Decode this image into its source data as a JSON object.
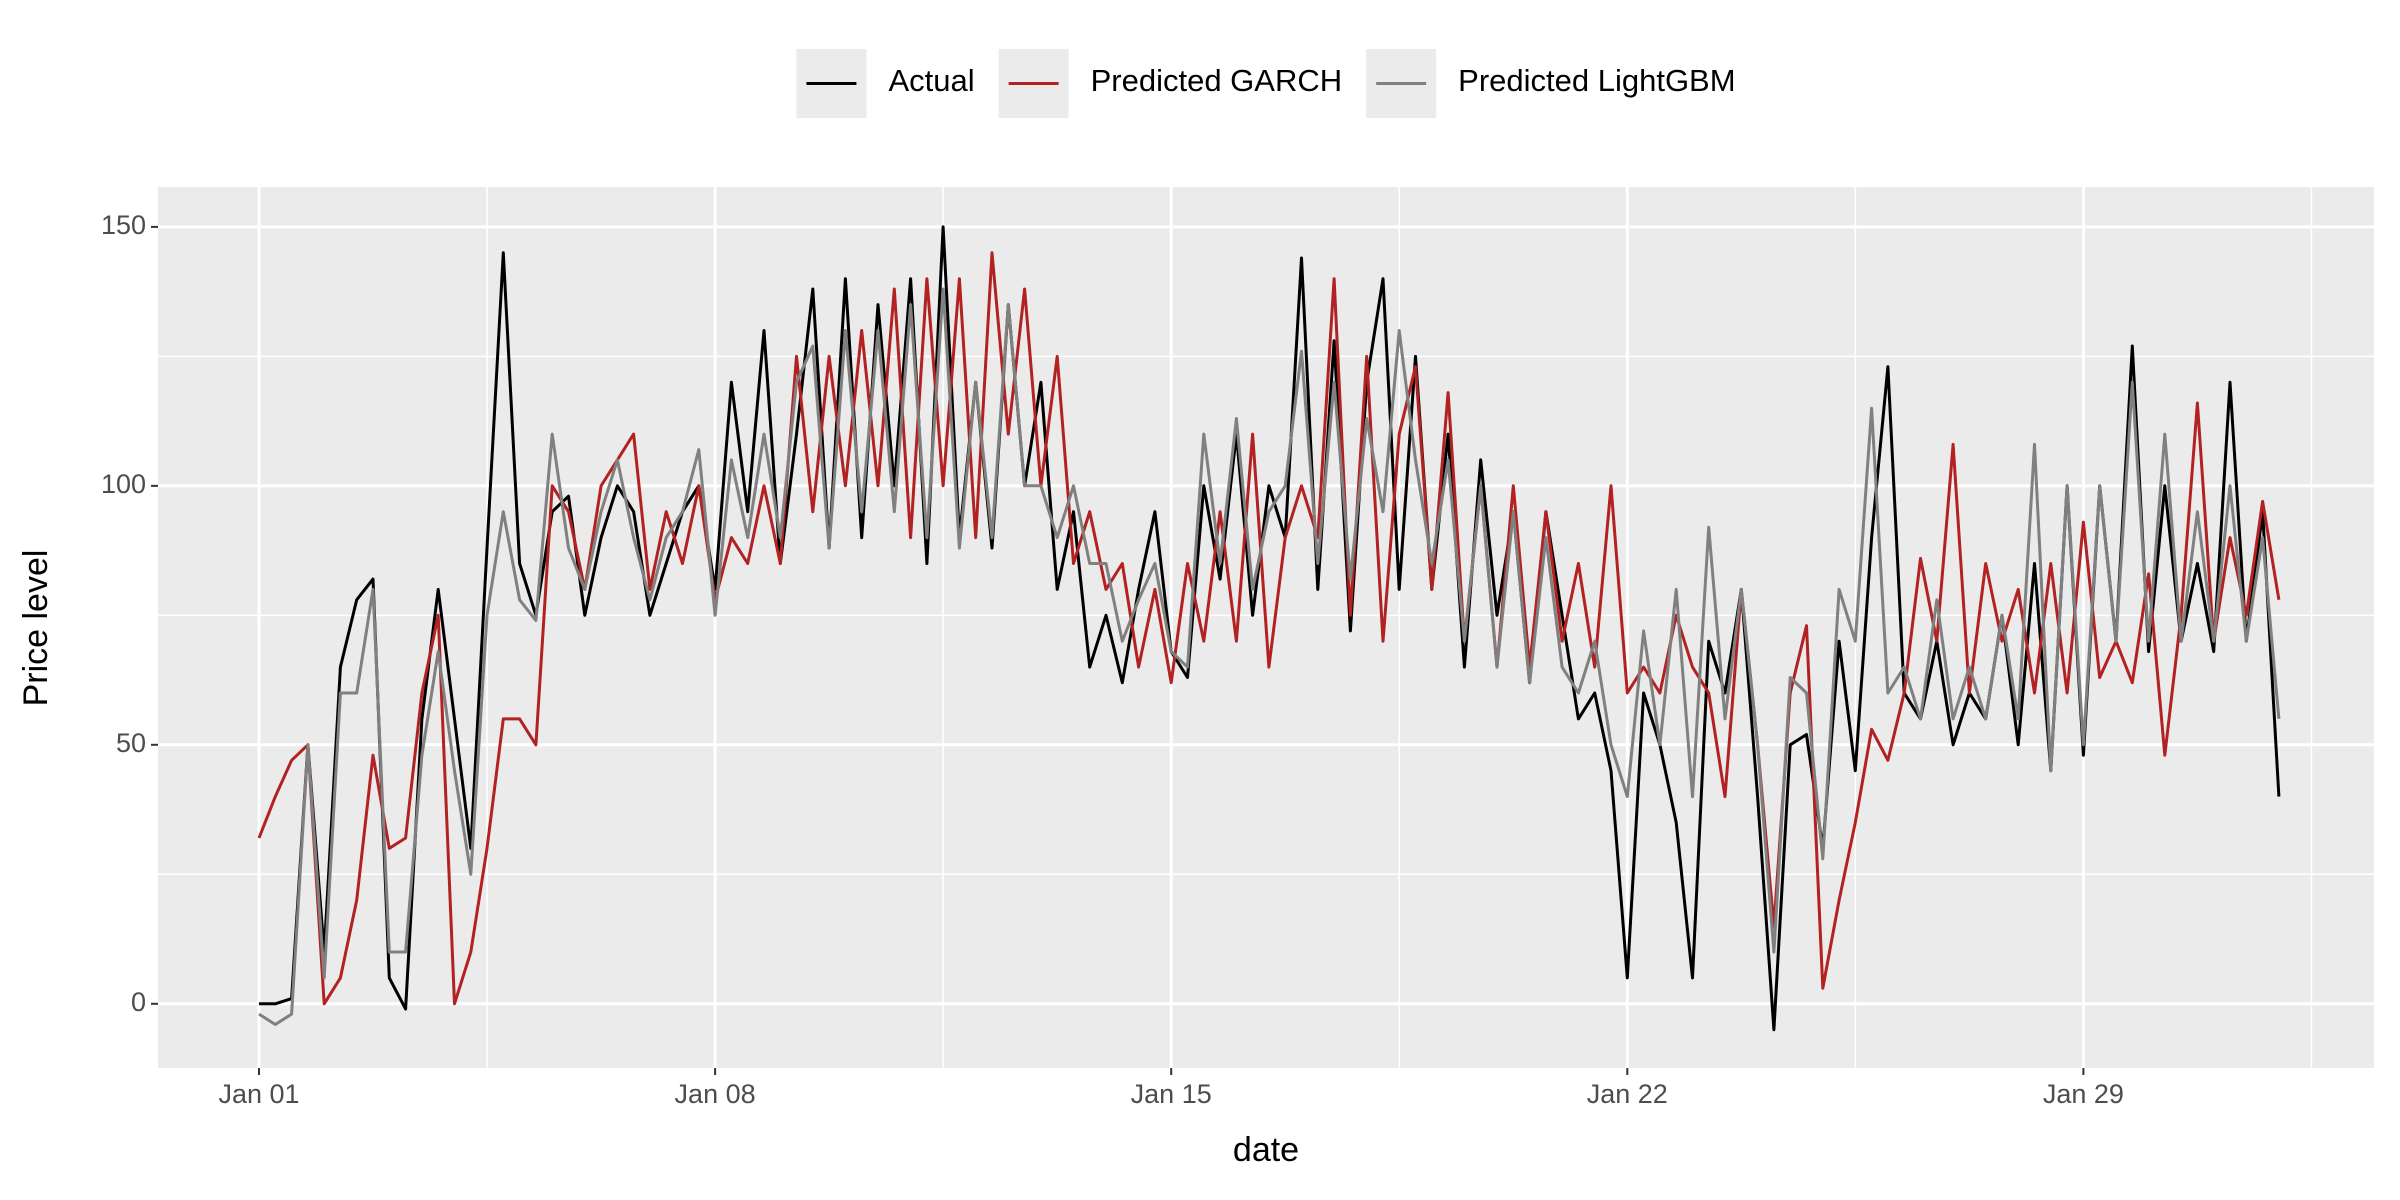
{
  "chart_data": {
    "type": "line",
    "x_label": "date",
    "y_label": "Price level",
    "x": [
      1,
      1.25,
      1.5,
      1.75,
      2,
      2.25,
      2.5,
      2.75,
      3,
      3.25,
      3.5,
      3.75,
      4,
      4.25,
      4.5,
      4.75,
      5,
      5.25,
      5.5,
      5.75,
      6,
      6.25,
      6.5,
      6.75,
      7,
      7.25,
      7.5,
      7.75,
      8,
      8.25,
      8.5,
      8.75,
      9,
      9.25,
      9.5,
      9.75,
      10,
      10.25,
      10.5,
      10.75,
      11,
      11.25,
      11.5,
      11.75,
      12,
      12.25,
      12.5,
      12.75,
      13,
      13.25,
      13.5,
      13.75,
      14,
      14.25,
      14.5,
      14.75,
      15,
      15.25,
      15.5,
      15.75,
      16,
      16.25,
      16.5,
      16.75,
      17,
      17.25,
      17.5,
      17.75,
      18,
      18.25,
      18.5,
      18.75,
      19,
      19.25,
      19.5,
      19.75,
      20,
      20.25,
      20.5,
      20.75,
      21,
      21.25,
      21.5,
      21.75,
      22,
      22.25,
      22.5,
      22.75,
      23,
      23.25,
      23.5,
      23.75,
      24,
      24.25,
      24.5,
      24.75,
      25,
      25.25,
      25.5,
      25.75,
      26,
      26.25,
      26.5,
      26.75,
      27,
      27.25,
      27.5,
      27.75,
      28,
      28.25,
      28.5,
      28.75,
      29,
      29.25,
      29.5,
      29.75,
      30,
      30.25,
      30.5,
      30.75,
      31,
      31.25,
      31.5,
      31.75,
      32
    ],
    "series": [
      {
        "name": "Actual",
        "color": "#000000",
        "values": [
          0,
          0,
          1,
          50,
          10,
          65,
          78,
          82,
          5,
          -1,
          55,
          80,
          55,
          30,
          88,
          145,
          85,
          75,
          95,
          98,
          75,
          90,
          100,
          95,
          75,
          85,
          95,
          100,
          80,
          120,
          95,
          130,
          85,
          110,
          138,
          88,
          140,
          90,
          135,
          100,
          140,
          85,
          150,
          90,
          120,
          88,
          135,
          100,
          120,
          80,
          95,
          65,
          75,
          62,
          80,
          95,
          68,
          63,
          100,
          82,
          110,
          75,
          100,
          90,
          144,
          80,
          128,
          72,
          120,
          140,
          80,
          125,
          80,
          110,
          65,
          105,
          75,
          95,
          62,
          95,
          75,
          55,
          60,
          45,
          5,
          60,
          50,
          35,
          5,
          70,
          60,
          80,
          40,
          -5,
          50,
          52,
          30,
          70,
          45,
          90,
          123,
          60,
          55,
          70,
          50,
          60,
          55,
          75,
          50,
          85,
          45,
          100,
          48,
          100,
          70,
          127,
          68,
          100,
          70,
          85,
          68,
          120,
          70,
          95,
          40
        ]
      },
      {
        "name": "Predicted GARCH",
        "color": "#b22222",
        "values": [
          32,
          40,
          47,
          50,
          0,
          5,
          20,
          48,
          30,
          32,
          60,
          75,
          0,
          10,
          30,
          55,
          55,
          50,
          100,
          95,
          80,
          100,
          105,
          110,
          80,
          95,
          85,
          100,
          78,
          90,
          85,
          100,
          85,
          125,
          95,
          125,
          100,
          130,
          100,
          138,
          90,
          140,
          100,
          140,
          90,
          145,
          110,
          138,
          100,
          125,
          85,
          95,
          80,
          85,
          65,
          80,
          62,
          85,
          70,
          95,
          70,
          110,
          65,
          90,
          100,
          90,
          140,
          75,
          125,
          70,
          110,
          123,
          80,
          118,
          70,
          100,
          65,
          100,
          65,
          95,
          70,
          85,
          65,
          100,
          60,
          65,
          60,
          75,
          65,
          60,
          40,
          80,
          50,
          15,
          60,
          73,
          3,
          20,
          35,
          53,
          47,
          60,
          86,
          70,
          108,
          60,
          85,
          70,
          80,
          60,
          85,
          60,
          93,
          63,
          70,
          62,
          83,
          48,
          75,
          116,
          70,
          90,
          75,
          97,
          78
        ]
      },
      {
        "name": "Predicted LightGBM",
        "color": "#808080",
        "values": [
          -2,
          -4,
          -2,
          50,
          5,
          60,
          60,
          80,
          10,
          10,
          48,
          68,
          45,
          25,
          75,
          95,
          78,
          74,
          110,
          88,
          80,
          95,
          105,
          90,
          78,
          90,
          95,
          107,
          75,
          105,
          90,
          110,
          90,
          120,
          127,
          88,
          130,
          95,
          130,
          95,
          135,
          90,
          138,
          88,
          120,
          90,
          135,
          100,
          100,
          90,
          100,
          85,
          85,
          70,
          78,
          85,
          68,
          65,
          110,
          85,
          113,
          80,
          95,
          100,
          126,
          85,
          120,
          82,
          113,
          95,
          130,
          105,
          85,
          105,
          70,
          100,
          65,
          95,
          62,
          90,
          65,
          60,
          70,
          50,
          40,
          72,
          50,
          80,
          40,
          92,
          55,
          80,
          50,
          10,
          63,
          60,
          28,
          80,
          70,
          115,
          60,
          65,
          55,
          78,
          55,
          65,
          55,
          75,
          55,
          108,
          45,
          100,
          50,
          100,
          70,
          120,
          70,
          110,
          70,
          95,
          70,
          100,
          70,
          90,
          55
        ]
      }
    ],
    "xlim": [
      -0.55,
      33.46
    ],
    "xticks": [
      {
        "value": 1,
        "label": "Jan 01"
      },
      {
        "value": 8,
        "label": "Jan 08"
      },
      {
        "value": 15,
        "label": "Jan 15"
      },
      {
        "value": 22,
        "label": "Jan 22"
      },
      {
        "value": 29,
        "label": "Jan 29"
      }
    ],
    "xminor": [
      4.5,
      11.5,
      18.5,
      25.5,
      32.5
    ],
    "ylim": [
      -12.4,
      157.7
    ],
    "yticks": [
      0,
      50,
      100,
      150
    ],
    "yminor": [
      25,
      75,
      125
    ],
    "grid": true,
    "legend": "top"
  }
}
